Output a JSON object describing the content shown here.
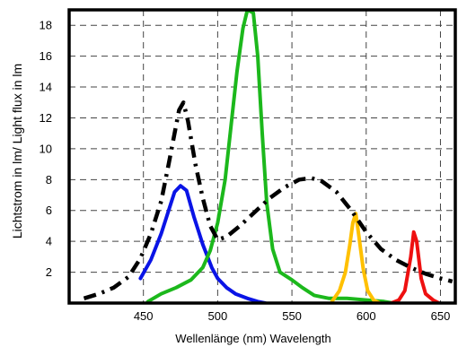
{
  "chart_data": {
    "type": "line",
    "title": "",
    "xlabel": "Wellenlänge (nm)  Wavelength",
    "ylabel": "Lichtstrom in lm/ Light flux in lm",
    "xlim": [
      400,
      660
    ],
    "ylim": [
      0,
      19
    ],
    "x_ticks": [
      450,
      500,
      550,
      600,
      650
    ],
    "x_tick_labels": [
      "450",
      "500",
      "550",
      "600",
      "650"
    ],
    "y_ticks": [
      2,
      4,
      6,
      8,
      10,
      12,
      14,
      16,
      18
    ],
    "y_tick_labels": [
      "2",
      "4",
      "6",
      "8",
      "10",
      "12",
      "14",
      "16",
      "18"
    ],
    "grid": true,
    "legend": "none",
    "series": [
      {
        "color": "#0a14e6",
        "style": "solid",
        "points": [
          [
            448,
            1.6
          ],
          [
            455,
            2.8
          ],
          [
            462,
            4.5
          ],
          [
            467,
            6.0
          ],
          [
            471,
            7.2
          ],
          [
            475,
            7.6
          ],
          [
            479,
            7.3
          ],
          [
            484,
            5.6
          ],
          [
            490,
            3.8
          ],
          [
            496,
            2.3
          ],
          [
            500,
            1.6
          ],
          [
            506,
            1.0
          ],
          [
            512,
            0.6
          ],
          [
            520,
            0.3
          ],
          [
            527,
            0.1
          ],
          [
            532,
            0.0
          ]
        ]
      },
      {
        "color": "#1cb81c",
        "style": "solid",
        "points": [
          [
            453,
            0.1
          ],
          [
            462,
            0.6
          ],
          [
            472,
            1.0
          ],
          [
            482,
            1.5
          ],
          [
            490,
            2.3
          ],
          [
            495,
            3.4
          ],
          [
            500,
            5.2
          ],
          [
            505,
            8.0
          ],
          [
            509,
            11.5
          ],
          [
            513,
            15.0
          ],
          [
            517,
            17.8
          ],
          [
            520,
            19.0
          ],
          [
            524,
            18.8
          ],
          [
            527,
            16.0
          ],
          [
            530,
            11.0
          ],
          [
            533,
            6.5
          ],
          [
            537,
            3.5
          ],
          [
            542,
            2.0
          ],
          [
            550,
            1.5
          ],
          [
            557,
            1.0
          ],
          [
            565,
            0.5
          ],
          [
            575,
            0.3
          ],
          [
            587,
            0.3
          ],
          [
            600,
            0.2
          ],
          [
            612,
            0.1
          ],
          [
            618,
            0.0
          ]
        ]
      },
      {
        "color": "#ffc000",
        "style": "solid",
        "points": [
          [
            577,
            0.1
          ],
          [
            582,
            0.8
          ],
          [
            586,
            2.0
          ],
          [
            589,
            3.8
          ],
          [
            591,
            5.2
          ],
          [
            593,
            5.8
          ],
          [
            595,
            4.4
          ],
          [
            598,
            2.2
          ],
          [
            601,
            0.8
          ],
          [
            605,
            0.2
          ],
          [
            609,
            0.0
          ]
        ]
      },
      {
        "color": "#ee1010",
        "style": "solid",
        "points": [
          [
            617,
            0.0
          ],
          [
            622,
            0.2
          ],
          [
            626,
            0.8
          ],
          [
            630,
            3.0
          ],
          [
            632,
            4.6
          ],
          [
            634,
            4.0
          ],
          [
            637,
            1.6
          ],
          [
            640,
            0.6
          ],
          [
            645,
            0.2
          ],
          [
            649,
            0.0
          ]
        ]
      },
      {
        "color": "#000000",
        "style": "dashdot",
        "points": [
          [
            410,
            0.3
          ],
          [
            420,
            0.6
          ],
          [
            430,
            1.0
          ],
          [
            440,
            1.7
          ],
          [
            448,
            2.9
          ],
          [
            455,
            4.5
          ],
          [
            462,
            6.6
          ],
          [
            467,
            9.0
          ],
          [
            471,
            11.0
          ],
          [
            474,
            12.5
          ],
          [
            477,
            13.0
          ],
          [
            480,
            11.8
          ],
          [
            485,
            9.0
          ],
          [
            490,
            6.8
          ],
          [
            495,
            5.0
          ],
          [
            500,
            4.1
          ],
          [
            506,
            4.3
          ],
          [
            515,
            5.0
          ],
          [
            525,
            5.9
          ],
          [
            535,
            6.8
          ],
          [
            545,
            7.5
          ],
          [
            555,
            8.0
          ],
          [
            563,
            8.1
          ],
          [
            570,
            7.9
          ],
          [
            580,
            7.2
          ],
          [
            590,
            6.0
          ],
          [
            600,
            4.6
          ],
          [
            610,
            3.5
          ],
          [
            620,
            2.8
          ],
          [
            630,
            2.3
          ],
          [
            640,
            1.9
          ],
          [
            650,
            1.6
          ],
          [
            658,
            1.4
          ]
        ]
      }
    ]
  }
}
